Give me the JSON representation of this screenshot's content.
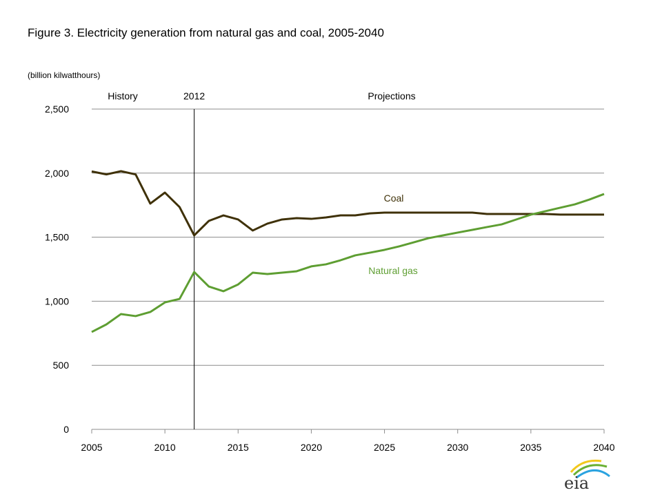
{
  "chart_data": {
    "type": "line",
    "title": "Figure 3. Electricity generation from natural gas and coal, 2005-2040",
    "ylabel": "(billion kilwatthours)",
    "xlabel": "",
    "xlim": [
      2005,
      2040
    ],
    "ylim": [
      0,
      2500
    ],
    "x_ticks": [
      "2005",
      "2010",
      "2015",
      "2020",
      "2025",
      "2030",
      "2035",
      "2040"
    ],
    "y_ticks": [
      "0",
      "500",
      "1,000",
      "1,500",
      "2,000",
      "2,500"
    ],
    "grid": "horizontal",
    "annotations": {
      "history": "History",
      "divider_year": "2012",
      "projections": "Projections"
    },
    "divider_x": 2012,
    "x": [
      2005,
      2006,
      2007,
      2008,
      2009,
      2010,
      2011,
      2012,
      2013,
      2014,
      2015,
      2016,
      2017,
      2018,
      2019,
      2020,
      2021,
      2022,
      2023,
      2024,
      2025,
      2026,
      2027,
      2028,
      2029,
      2030,
      2031,
      2032,
      2033,
      2034,
      2035,
      2036,
      2037,
      2038,
      2039,
      2040
    ],
    "series": [
      {
        "name": "Coal",
        "color": "#3f3108",
        "values": [
          2013,
          1990,
          2015,
          1990,
          1762,
          1848,
          1735,
          1514,
          1627,
          1670,
          1638,
          1552,
          1606,
          1638,
          1649,
          1643,
          1654,
          1670,
          1670,
          1686,
          1692,
          1692,
          1692,
          1692,
          1692,
          1692,
          1692,
          1681,
          1681,
          1681,
          1681,
          1681,
          1676,
          1676,
          1676,
          1676
        ]
      },
      {
        "name": "Natural gas",
        "color": "#5e9e32",
        "values": [
          760,
          819,
          900,
          884,
          916,
          991,
          1018,
          1228,
          1115,
          1078,
          1131,
          1223,
          1212,
          1223,
          1234,
          1272,
          1288,
          1320,
          1358,
          1379,
          1401,
          1428,
          1460,
          1492,
          1514,
          1536,
          1557,
          1579,
          1600,
          1638,
          1676,
          1703,
          1730,
          1756,
          1794,
          1837
        ]
      }
    ]
  },
  "logo": {
    "text": "eia"
  }
}
